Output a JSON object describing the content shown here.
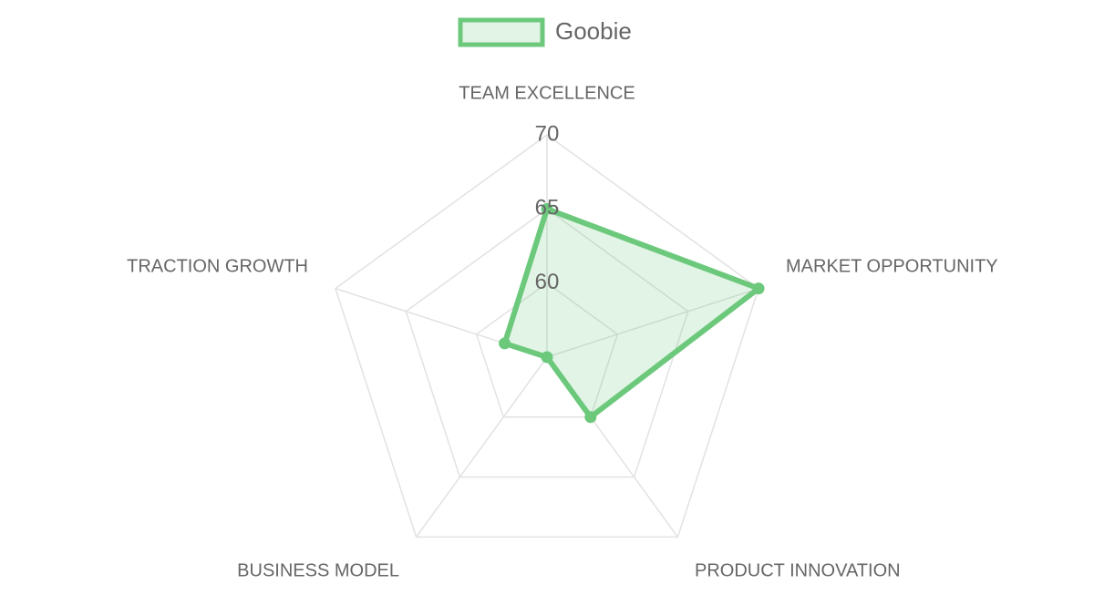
{
  "chart_data": {
    "type": "radar",
    "categories": [
      "TEAM EXCELLENCE",
      "MARKET OPPORTUNITY",
      "PRODUCT INNOVATION",
      "BUSINESS MODEL",
      "TRACTION GROWTH"
    ],
    "series": [
      {
        "name": "Goobie",
        "color": "#6cc97c",
        "values": [
          65,
          70,
          60,
          55,
          58
        ]
      }
    ],
    "rlim": [
      55,
      70
    ],
    "rticks": [
      60,
      65,
      70
    ],
    "grid": true,
    "legend": "top"
  }
}
